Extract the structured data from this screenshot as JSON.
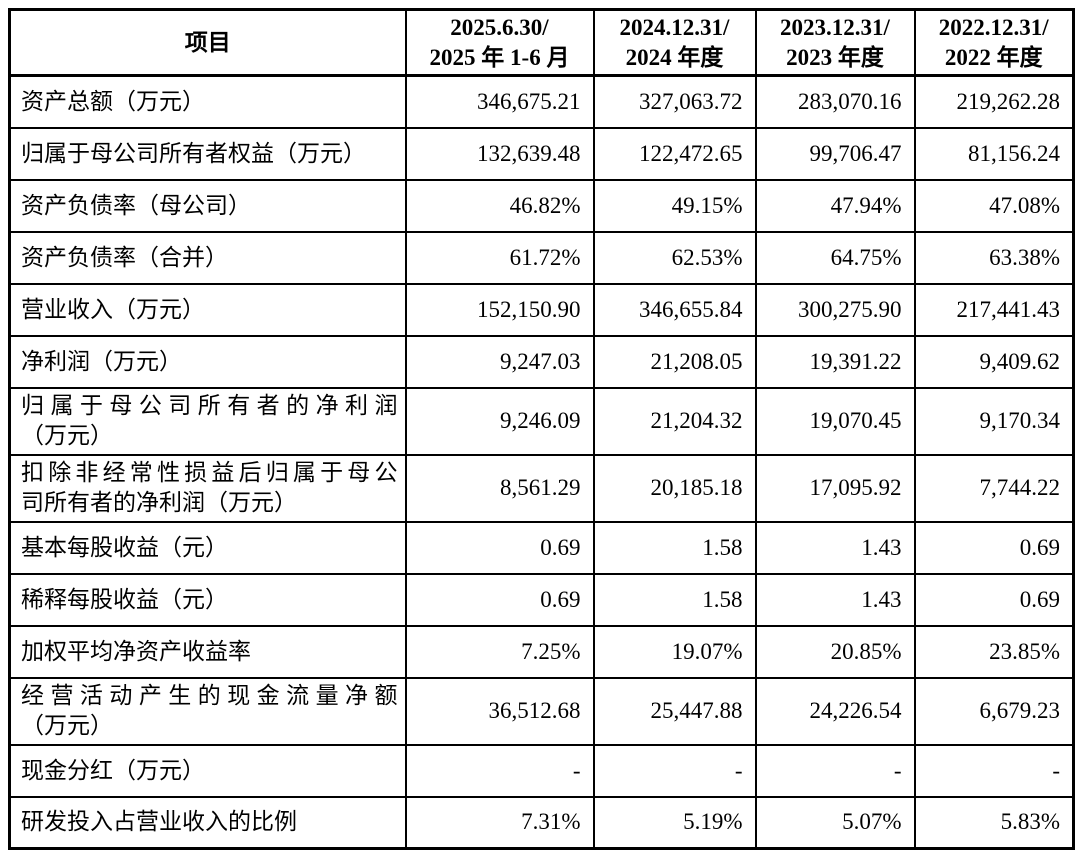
{
  "table": {
    "header": {
      "item_label": "项目",
      "periods": [
        {
          "line1": "2025.6.30/",
          "line2": "2025 年 1-6 月"
        },
        {
          "line1": "2024.12.31/",
          "line2": "2024 年度"
        },
        {
          "line1": "2023.12.31/",
          "line2": "2023 年度"
        },
        {
          "line1": "2022.12.31/",
          "line2": "2022 年度"
        }
      ]
    },
    "rows": [
      {
        "label_lines": [
          "资产总额（万元）"
        ],
        "values": [
          "346,675.21",
          "327,063.72",
          "283,070.16",
          "219,262.28"
        ]
      },
      {
        "label_lines": [
          "归属于母公司所有者权益（万元）"
        ],
        "values": [
          "132,639.48",
          "122,472.65",
          "99,706.47",
          "81,156.24"
        ]
      },
      {
        "label_lines": [
          "资产负债率（母公司）"
        ],
        "values": [
          "46.82%",
          "49.15%",
          "47.94%",
          "47.08%"
        ]
      },
      {
        "label_lines": [
          "资产负债率（合并）"
        ],
        "values": [
          "61.72%",
          "62.53%",
          "64.75%",
          "63.38%"
        ]
      },
      {
        "label_lines": [
          "营业收入（万元）"
        ],
        "values": [
          "152,150.90",
          "346,655.84",
          "300,275.90",
          "217,441.43"
        ]
      },
      {
        "label_lines": [
          "净利润（万元）"
        ],
        "values": [
          "9,247.03",
          "21,208.05",
          "19,391.22",
          "9,409.62"
        ]
      },
      {
        "label_lines": [
          "归属于母公司所有者的净利润",
          "（万元）"
        ],
        "values": [
          "9,246.09",
          "21,204.32",
          "19,070.45",
          "9,170.34"
        ]
      },
      {
        "label_lines": [
          "扣除非经常性损益后归属于母公",
          "司所有者的净利润（万元）"
        ],
        "values": [
          "8,561.29",
          "20,185.18",
          "17,095.92",
          "7,744.22"
        ]
      },
      {
        "label_lines": [
          "基本每股收益（元）"
        ],
        "values": [
          "0.69",
          "1.58",
          "1.43",
          "0.69"
        ]
      },
      {
        "label_lines": [
          "稀释每股收益（元）"
        ],
        "values": [
          "0.69",
          "1.58",
          "1.43",
          "0.69"
        ]
      },
      {
        "label_lines": [
          "加权平均净资产收益率"
        ],
        "values": [
          "7.25%",
          "19.07%",
          "20.85%",
          "23.85%"
        ]
      },
      {
        "label_lines": [
          "经营活动产生的现金流量净额",
          "（万元）"
        ],
        "values": [
          "36,512.68",
          "25,447.88",
          "24,226.54",
          "6,679.23"
        ]
      },
      {
        "label_lines": [
          "现金分红（万元）"
        ],
        "values": [
          "-",
          "-",
          "-",
          "-"
        ]
      },
      {
        "label_lines": [
          "研发投入占营业收入的比例"
        ],
        "values": [
          "7.31%",
          "5.19%",
          "5.07%",
          "5.83%"
        ]
      }
    ]
  },
  "colors": {
    "border": "#000000",
    "text": "#000000",
    "background": "#ffffff"
  }
}
